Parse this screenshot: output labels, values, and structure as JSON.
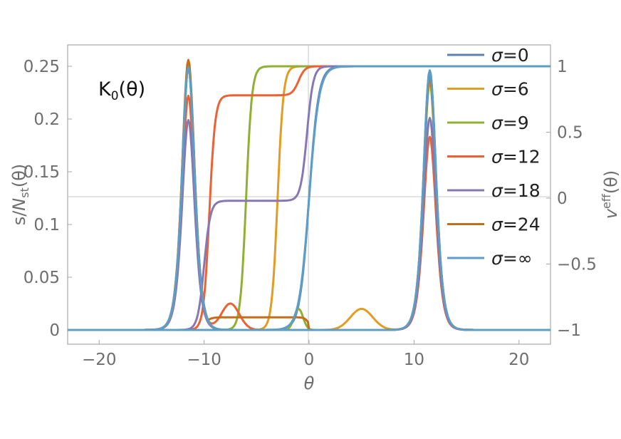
{
  "chart_data": {
    "type": "line",
    "title": "",
    "annotation": {
      "main": "K",
      "sub": "0",
      "tail": "(θ)"
    },
    "xlabel": "θ",
    "ylabel_left": {
      "main": "s/",
      "italic": "N",
      "sub": "st",
      "tail": "(θ)"
    },
    "ylabel_right": {
      "italic": "v",
      "sup": "eff",
      "tail": "(θ)"
    },
    "xlim": [
      -23,
      23
    ],
    "ylim_left": [
      0,
      0.25
    ],
    "ylim_right": [
      -1,
      1
    ],
    "x_ticks": [
      -20,
      -10,
      0,
      10,
      20
    ],
    "y_ticks_left": [
      0,
      0.05,
      0.1,
      0.15,
      0.2,
      0.25
    ],
    "y_ticks_right": [
      -1,
      -0.5,
      0,
      0.5,
      1
    ],
    "y_tick_labels_right": [
      "−1",
      "−0.5",
      "0",
      "0.5",
      "1"
    ],
    "x_tick_labels": [
      "−20",
      "−10",
      "0",
      "10",
      "20"
    ],
    "grid": false,
    "legend_position": "top-right",
    "entropy_peaks": {
      "description_keys": [
        "center",
        "width"
      ],
      "center": 11.5
    },
    "series": [
      {
        "name": "σ=0",
        "color": "#5e81b5",
        "peak_left": 0.25,
        "peak_right": 0.246,
        "veff": {
          "kind": "tanh",
          "center": 0.0,
          "width": 0.9
        },
        "bump": null
      },
      {
        "name": "σ=6",
        "color": "#e19c24",
        "peak_left": 0.25,
        "peak_right": 0.238,
        "veff": {
          "kind": "tanh",
          "center": -3.0,
          "width": 0.55
        },
        "bump": {
          "x": 5.0,
          "h": 0.02,
          "w": 1.5
        }
      },
      {
        "name": "σ=9",
        "color": "#8fb032",
        "peak_left": 0.25,
        "peak_right": 0.235,
        "veff": {
          "kind": "tanh",
          "center": -6.0,
          "width": 0.55
        },
        "bump": {
          "x": -1.0,
          "h": 0.02,
          "w": 0.6
        }
      },
      {
        "name": "σ=12",
        "color": "#eb6235",
        "peak_left": 0.222,
        "peak_right": 0.183,
        "veff": {
          "kind": "step2",
          "c1": -9.5,
          "w1": 0.55,
          "plateau": 0.78,
          "c2": -1.0,
          "w2": 0.6
        },
        "bump": {
          "x": -7.5,
          "h": 0.025,
          "w": 1.2
        }
      },
      {
        "name": "σ=18",
        "color": "#8778b3",
        "peak_left": 0.199,
        "peak_right": 0.201,
        "veff": {
          "kind": "step2",
          "c1": -10.0,
          "w1": 0.6,
          "plateau": -0.02,
          "c2": -0.2,
          "w2": 0.6
        },
        "bump": null
      },
      {
        "name": "σ=24",
        "color": "#c56e1a",
        "peak_left": 0.256,
        "peak_right": 0.24,
        "veff": {
          "kind": "plateau",
          "from": -10.0,
          "to": 0.0,
          "level": 0.012
        },
        "bump": null
      },
      {
        "name": "σ=∞",
        "color": "#5d9ec7",
        "peak_left": 0.249,
        "peak_right": 0.246,
        "veff": {
          "kind": "tanh",
          "center": 0.0,
          "width": 0.95
        },
        "bump": null
      }
    ]
  }
}
